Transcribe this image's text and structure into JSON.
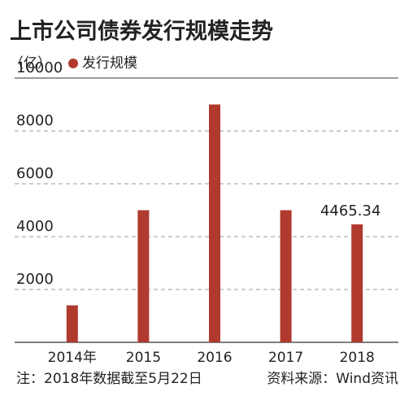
{
  "chart_data": {
    "type": "bar",
    "title": "上市公司债券发行规模走势",
    "unit": "（亿）",
    "categories": [
      "2014年",
      "2015",
      "2016",
      "2017",
      "2018"
    ],
    "series": [
      {
        "name": "发行规模",
        "color": "#b03a2e",
        "values": [
          1400,
          5000,
          9000,
          5000,
          4465.34
        ]
      }
    ],
    "labeled_points": [
      4
    ],
    "ylim": [
      0,
      10000
    ],
    "yticks": [
      2000,
      4000,
      6000,
      8000,
      10000
    ],
    "grid": true,
    "note": "注：2018年数据截至5月22日",
    "source": "资料来源：Wind资讯"
  }
}
